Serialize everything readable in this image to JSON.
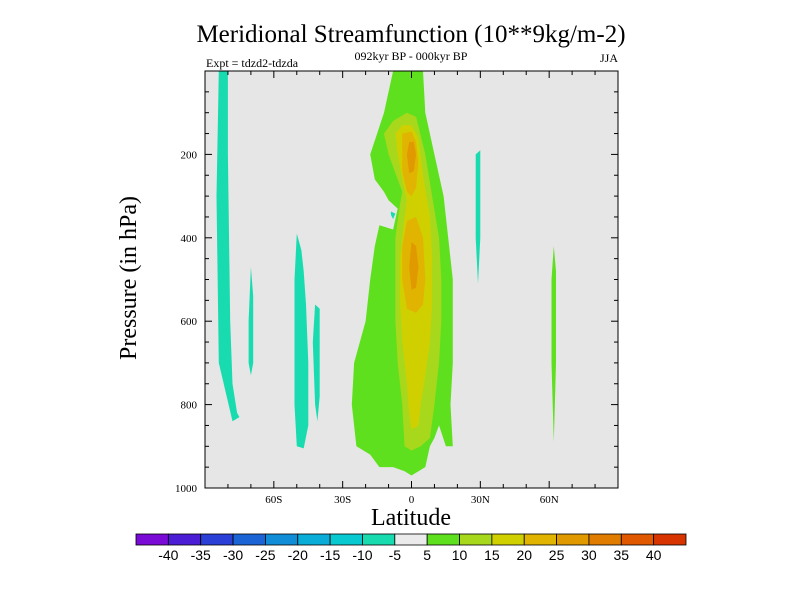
{
  "chart_data": {
    "type": "contour",
    "title": "Meridional Streamfunction (10**9kg/m-2)",
    "subtitle_left": "Expt = tdzd2-tdzda",
    "subtitle_center": "092kyr BP - 000kyr BP",
    "subtitle_right": "JJA",
    "xlabel": "Latitude",
    "ylabel": "Pressure (in hPa)",
    "x_ticks": [
      "60S",
      "30S",
      "0",
      "30N",
      "60N"
    ],
    "x_tick_values": [
      -60,
      -30,
      0,
      30,
      60
    ],
    "xlim": [
      -90,
      90
    ],
    "y_ticks": [
      "200",
      "400",
      "600",
      "800",
      "1000"
    ],
    "y_tick_values": [
      200,
      400,
      600,
      800,
      1000
    ],
    "ylim": [
      0,
      1000
    ],
    "background_color": "#e6e6e6",
    "colorbar": {
      "labels": [
        "-40",
        "-35",
        "-30",
        "-25",
        "-20",
        "-15",
        "-10",
        "-5",
        "5",
        "10",
        "15",
        "20",
        "25",
        "30",
        "35",
        "40"
      ],
      "colors": [
        "#7a0ad6",
        "#4b1ed6",
        "#2a3fd6",
        "#1a64d6",
        "#118cd6",
        "#0aacd8",
        "#08c8d0",
        "#18dcb0",
        "#ebebeb",
        "#5fe01e",
        "#a8d81c",
        "#d0d000",
        "#e0b400",
        "#e09a00",
        "#e07c00",
        "#e05800",
        "#d83400"
      ]
    },
    "regions": [
      {
        "name": "neg-col-80S",
        "level": "-10 to -5",
        "color": "#18dcb0",
        "points": [
          [
            -84,
            0
          ],
          [
            -80,
            0
          ],
          [
            -80,
            200
          ],
          [
            -79,
            600
          ],
          [
            -78,
            750
          ],
          [
            -76,
            820
          ],
          [
            -75,
            830
          ],
          [
            -78,
            840
          ],
          [
            -84,
            700
          ],
          [
            -85,
            300
          ]
        ]
      },
      {
        "name": "neg-col-70S",
        "level": "-10 to -5",
        "color": "#18dcb0",
        "points": [
          [
            -70,
            470
          ],
          [
            -69,
            540
          ],
          [
            -69,
            700
          ],
          [
            -70,
            730
          ],
          [
            -71,
            700
          ],
          [
            -71,
            600
          ]
        ]
      },
      {
        "name": "neg-col-50S",
        "level": "-10 to -5",
        "color": "#18dcb0",
        "points": [
          [
            -50,
            390
          ],
          [
            -48,
            430
          ],
          [
            -47,
            480
          ],
          [
            -46,
            560
          ],
          [
            -45,
            700
          ],
          [
            -45,
            850
          ],
          [
            -47,
            905
          ],
          [
            -50,
            900
          ],
          [
            -51,
            800
          ],
          [
            -51,
            500
          ]
        ]
      },
      {
        "name": "neg-col-40S",
        "level": "-10 to -5",
        "color": "#18dcb0",
        "points": [
          [
            -42,
            560
          ],
          [
            -40,
            570
          ],
          [
            -40,
            780
          ],
          [
            -41,
            840
          ],
          [
            -42,
            800
          ],
          [
            -43,
            650
          ]
        ]
      },
      {
        "name": "neg-dot-20S",
        "level": "-10 to -5",
        "color": "#18dcb0",
        "points": [
          [
            -9,
            337
          ],
          [
            -7,
            342
          ],
          [
            -8,
            355
          ],
          [
            -9,
            345
          ]
        ]
      },
      {
        "name": "neg-col-30N",
        "level": "-10 to -5",
        "color": "#18dcb0",
        "points": [
          [
            28,
            200
          ],
          [
            30,
            190
          ],
          [
            30,
            400
          ],
          [
            29,
            510
          ],
          [
            28,
            400
          ]
        ]
      },
      {
        "name": "pos-col-5",
        "level": "5 to 10",
        "color": "#5fe01e",
        "points": [
          [
            -8,
            0
          ],
          [
            5,
            0
          ],
          [
            6,
            100
          ],
          [
            10,
            200
          ],
          [
            14,
            300
          ],
          [
            16,
            400
          ],
          [
            18,
            500
          ],
          [
            18,
            700
          ],
          [
            17,
            800
          ],
          [
            18,
            900
          ],
          [
            15,
            900
          ],
          [
            12,
            850
          ],
          [
            10,
            880
          ],
          [
            8,
            900
          ],
          [
            6,
            950
          ],
          [
            0,
            970
          ],
          [
            -3,
            960
          ],
          [
            -8,
            950
          ],
          [
            -14,
            950
          ],
          [
            -18,
            920
          ],
          [
            -24,
            900
          ],
          [
            -26,
            800
          ],
          [
            -25,
            700
          ],
          [
            -20,
            600
          ],
          [
            -18,
            500
          ],
          [
            -16,
            420
          ],
          [
            -14,
            370
          ],
          [
            -8,
            380
          ],
          [
            -6,
            330
          ],
          [
            -10,
            310
          ],
          [
            -12,
            290
          ],
          [
            -16,
            260
          ],
          [
            -18,
            200
          ],
          [
            -15,
            150
          ],
          [
            -12,
            100
          ]
        ]
      },
      {
        "name": "pos-col-60N",
        "level": "5 to 10",
        "color": "#5fe01e",
        "points": [
          [
            62,
            420
          ],
          [
            63,
            480
          ],
          [
            63,
            700
          ],
          [
            62,
            890
          ],
          [
            61,
            700
          ],
          [
            61,
            500
          ]
        ]
      },
      {
        "name": "pos-10",
        "level": "10 to 15",
        "color": "#a8d81c",
        "points": [
          [
            -10,
            200
          ],
          [
            -12,
            150
          ],
          [
            -8,
            120
          ],
          [
            -2,
            100
          ],
          [
            2,
            110
          ],
          [
            6,
            200
          ],
          [
            9,
            300
          ],
          [
            12,
            400
          ],
          [
            13,
            500
          ],
          [
            13,
            600
          ],
          [
            12,
            700
          ],
          [
            10,
            800
          ],
          [
            8,
            880
          ],
          [
            4,
            900
          ],
          [
            0,
            910
          ],
          [
            -3,
            900
          ],
          [
            -4,
            800
          ],
          [
            -6,
            700
          ],
          [
            -7,
            600
          ],
          [
            -7,
            500
          ],
          [
            -7,
            400
          ],
          [
            -5,
            320
          ],
          [
            -4,
            290
          ],
          [
            -6,
            260
          ]
        ]
      },
      {
        "name": "pos-15",
        "level": "15 to 20",
        "color": "#d0d000",
        "points": [
          [
            -6,
            200
          ],
          [
            -7,
            150
          ],
          [
            -4,
            130
          ],
          [
            0,
            130
          ],
          [
            3,
            160
          ],
          [
            5,
            250
          ],
          [
            8,
            350
          ],
          [
            9,
            450
          ],
          [
            9,
            560
          ],
          [
            8,
            650
          ],
          [
            6,
            730
          ],
          [
            4,
            800
          ],
          [
            3,
            850
          ],
          [
            0,
            860
          ],
          [
            -1,
            820
          ],
          [
            -2,
            750
          ],
          [
            -4,
            650
          ],
          [
            -5,
            550
          ],
          [
            -5,
            450
          ],
          [
            -3,
            350
          ],
          [
            -2,
            310
          ],
          [
            -4,
            260
          ]
        ]
      },
      {
        "name": "pos-20-upper",
        "level": "20 to 25",
        "color": "#e0b400",
        "points": [
          [
            -4,
            180
          ],
          [
            -4,
            150
          ],
          [
            0,
            145
          ],
          [
            2,
            170
          ],
          [
            3,
            220
          ],
          [
            2,
            280
          ],
          [
            0,
            300
          ],
          [
            -2,
            290
          ],
          [
            -4,
            240
          ]
        ]
      },
      {
        "name": "pos-20-lower",
        "level": "20 to 25",
        "color": "#e0b400",
        "points": [
          [
            -2,
            360
          ],
          [
            2,
            350
          ],
          [
            5,
            400
          ],
          [
            6,
            500
          ],
          [
            5,
            560
          ],
          [
            2,
            580
          ],
          [
            -2,
            570
          ],
          [
            -4,
            500
          ],
          [
            -4,
            420
          ]
        ]
      },
      {
        "name": "pos-25-upper",
        "level": "25 to 30",
        "color": "#e09a00",
        "points": [
          [
            -1,
            170
          ],
          [
            1,
            170
          ],
          [
            2,
            200
          ],
          [
            1,
            240
          ],
          [
            -1,
            245
          ],
          [
            -2,
            200
          ]
        ]
      },
      {
        "name": "pos-25-lower",
        "level": "25 to 30",
        "color": "#e09a00",
        "points": [
          [
            0,
            410
          ],
          [
            2,
            420
          ],
          [
            3,
            470
          ],
          [
            2,
            520
          ],
          [
            0,
            525
          ],
          [
            -1,
            470
          ]
        ]
      }
    ]
  }
}
